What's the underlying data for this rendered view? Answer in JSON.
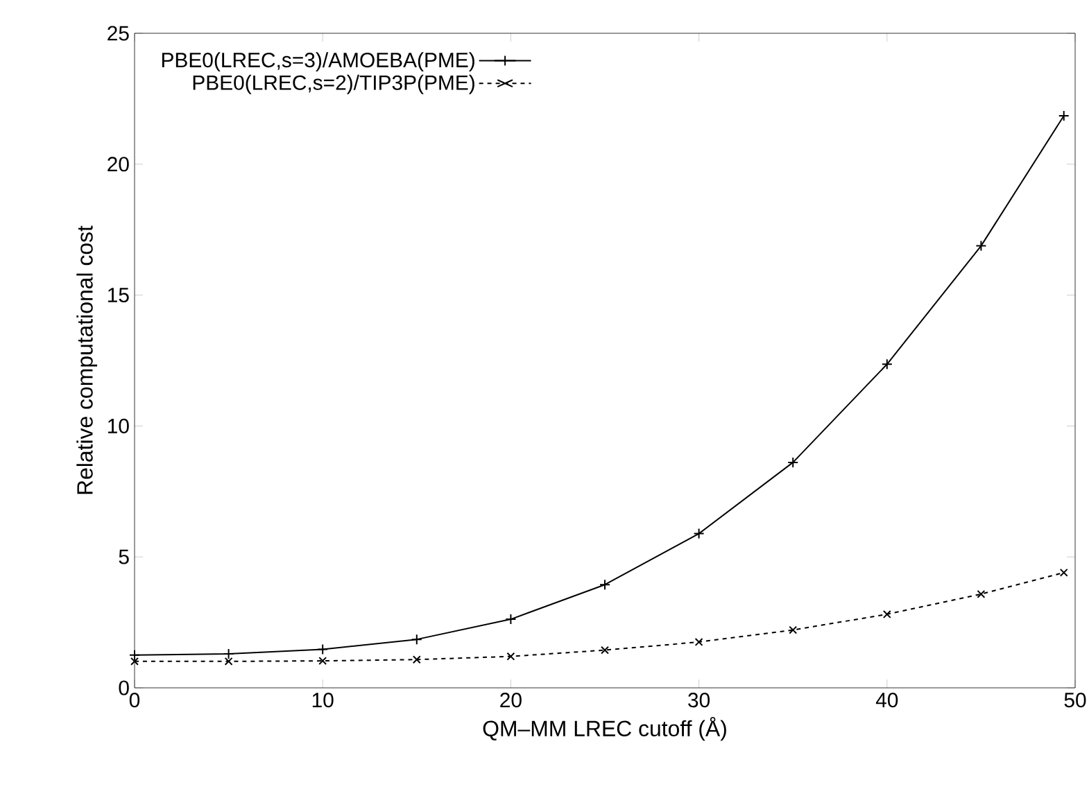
{
  "chart_data": {
    "type": "line",
    "xlabel": "QM–MM LREC cutoff (Å)",
    "ylabel": "Relative computational cost",
    "xlim": [
      0,
      50
    ],
    "ylim": [
      0,
      25
    ],
    "xticks": [
      0,
      10,
      20,
      30,
      40,
      50
    ],
    "yticks": [
      0,
      5,
      10,
      15,
      20,
      25
    ],
    "legend": "top left",
    "grid": false,
    "series": [
      {
        "name": "PBE0(LREC,s=3)/AMOEBA(PME)",
        "color": "#000000",
        "marker": "cross",
        "line_style": "solid",
        "x": [
          0,
          5,
          10,
          15,
          20,
          25,
          30,
          35,
          40,
          45,
          49.4
        ],
        "values": [
          1.25,
          1.3,
          1.47,
          1.85,
          2.62,
          3.94,
          5.89,
          8.61,
          12.36,
          16.88,
          21.85
        ]
      },
      {
        "name": "PBE0(LREC,s=2)/TIP3P(PME)",
        "color": "#000000",
        "marker": "x",
        "line_style": "dashed",
        "x": [
          0,
          5,
          10,
          15,
          20,
          25,
          30,
          35,
          40,
          45,
          49.4
        ],
        "values": [
          1.01,
          1.01,
          1.03,
          1.08,
          1.2,
          1.44,
          1.75,
          2.21,
          2.81,
          3.58,
          4.4
        ]
      }
    ]
  }
}
